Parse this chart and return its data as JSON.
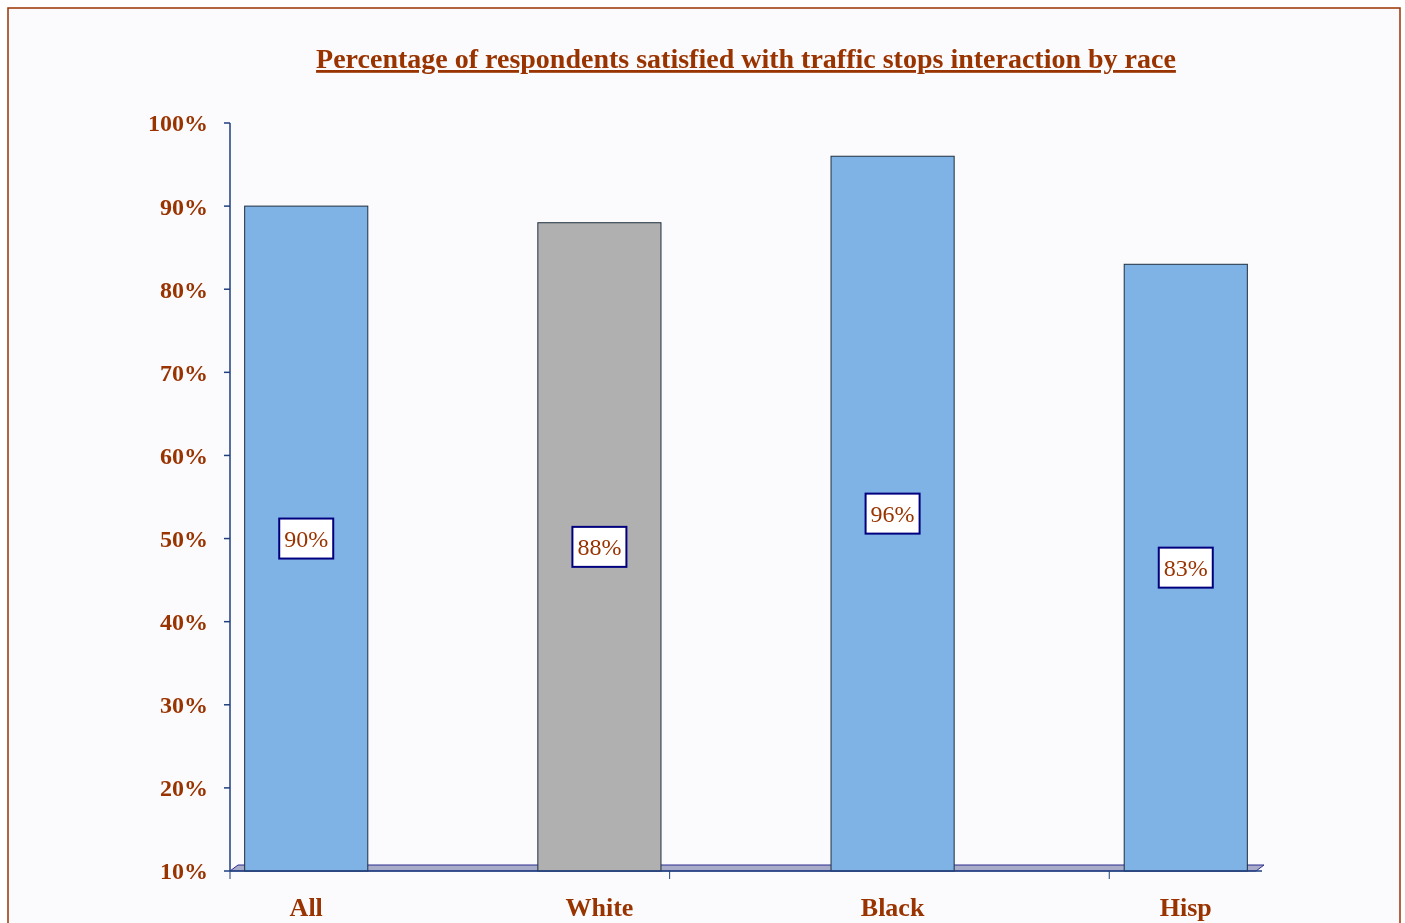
{
  "chart_data": {
    "type": "bar",
    "title": "Percentage of  respondents satisfied with traffic stops interaction by race",
    "categories": [
      "All",
      "White",
      "Black",
      "Hisp"
    ],
    "values": [
      90,
      88,
      96,
      83
    ],
    "colors": [
      "#7fb2e5",
      "#b0b0b0",
      "#7fb2e5",
      "#7fb2e5"
    ],
    "value_labels": [
      "90%",
      "88%",
      "96%",
      "83%"
    ],
    "ylim": [
      10,
      100
    ],
    "yticks": [
      {
        "value": 10,
        "label": "10%"
      },
      {
        "value": 20,
        "label": "20%"
      },
      {
        "value": 30,
        "label": "30%"
      },
      {
        "value": 40,
        "label": "40%"
      },
      {
        "value": 50,
        "label": "50%"
      },
      {
        "value": 60,
        "label": "60%"
      },
      {
        "value": 70,
        "label": "70%"
      },
      {
        "value": 80,
        "label": "80%"
      },
      {
        "value": 90,
        "label": "90%"
      },
      {
        "value": 100,
        "label": "100%"
      }
    ],
    "grid": false
  }
}
